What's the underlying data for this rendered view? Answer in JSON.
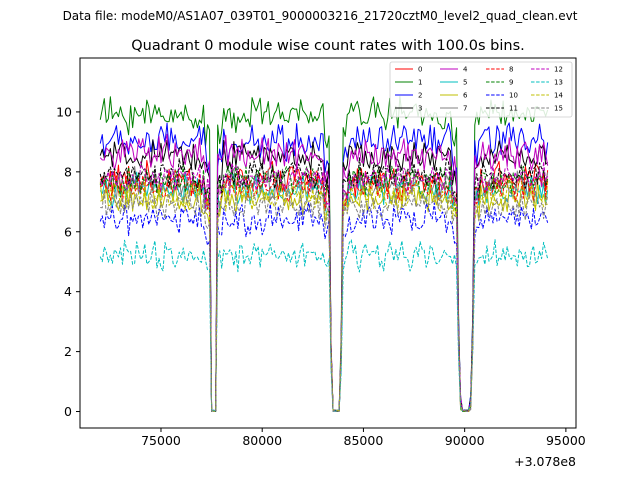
{
  "chart_data": {
    "type": "line",
    "suptitle": "Data file: modeM0/AS1A07_039T01_9000003216_21720cztM0_level2_quad_clean.evt",
    "title": "Quadrant 0 module wise count rates with 100.0s bins.",
    "xlabel": "",
    "ylabel": "",
    "x_offset_label": "+3.078e8",
    "xlim": [
      71000,
      95500
    ],
    "ylim": [
      -0.55,
      11.8
    ],
    "x_ticks": [
      75000,
      80000,
      85000,
      90000,
      95000
    ],
    "x_tick_labels": [
      "75000",
      "80000",
      "85000",
      "90000",
      "95000"
    ],
    "y_ticks": [
      0,
      2,
      4,
      6,
      8,
      10
    ],
    "y_tick_labels": [
      "0",
      "2",
      "4",
      "6",
      "8",
      "10"
    ],
    "grid": false,
    "legend_position": "top-right",
    "x_range": [
      72000,
      94100
    ],
    "bin_seconds": 100,
    "segments": [
      {
        "start": 72000,
        "end": 77400
      },
      {
        "start": 77800,
        "end": 83300
      },
      {
        "start": 84000,
        "end": 89600
      },
      {
        "start": 90500,
        "end": 94100
      }
    ],
    "gaps": [
      {
        "start": 77400,
        "end": 77800,
        "min": 0.0
      },
      {
        "start": 83300,
        "end": 84000,
        "min": 0.0
      },
      {
        "start": 89600,
        "end": 90500,
        "min": 0.0
      }
    ],
    "series": [
      {
        "name": "0",
        "color": "#ff0000",
        "style": "solid",
        "mean": 7.7,
        "noise": 0.35
      },
      {
        "name": "1",
        "color": "#008000",
        "style": "solid",
        "mean": 9.9,
        "noise": 0.35
      },
      {
        "name": "2",
        "color": "#0000ff",
        "style": "solid",
        "mean": 9.0,
        "noise": 0.35
      },
      {
        "name": "3",
        "color": "#000000",
        "style": "solid",
        "mean": 8.5,
        "noise": 0.3
      },
      {
        "name": "4",
        "color": "#bf00bf",
        "style": "solid",
        "mean": 8.6,
        "noise": 0.35
      },
      {
        "name": "5",
        "color": "#00bfbf",
        "style": "solid",
        "mean": 7.4,
        "noise": 0.3
      },
      {
        "name": "6",
        "color": "#bfbf00",
        "style": "solid",
        "mean": 7.1,
        "noise": 0.3
      },
      {
        "name": "7",
        "color": "#808080",
        "style": "solid",
        "mean": 7.6,
        "noise": 0.3
      },
      {
        "name": "8",
        "color": "#ff0000",
        "style": "dashed",
        "mean": 7.5,
        "noise": 0.3
      },
      {
        "name": "9",
        "color": "#008000",
        "style": "dashed",
        "mean": 7.7,
        "noise": 0.3
      },
      {
        "name": "10",
        "color": "#0000ff",
        "style": "dashed",
        "mean": 6.4,
        "noise": 0.3
      },
      {
        "name": "11",
        "color": "#000000",
        "style": "dashed",
        "mean": 7.9,
        "noise": 0.3
      },
      {
        "name": "12",
        "color": "#bf00bf",
        "style": "dashed",
        "mean": 7.8,
        "noise": 0.3
      },
      {
        "name": "13",
        "color": "#00bfbf",
        "style": "dashed",
        "mean": 5.2,
        "noise": 0.3
      },
      {
        "name": "14",
        "color": "#bfbf00",
        "style": "dashed",
        "mean": 7.2,
        "noise": 0.3
      },
      {
        "name": "15",
        "color": "#808080",
        "style": "dashed",
        "mean": 6.9,
        "noise": 0.3
      }
    ]
  }
}
